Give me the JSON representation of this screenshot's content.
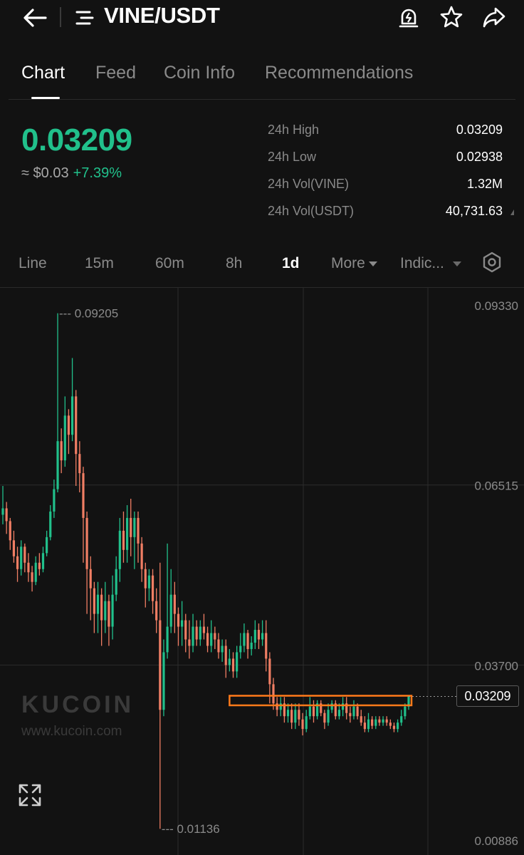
{
  "header": {
    "pair": "VINE/USDT",
    "icons": [
      "back-arrow-icon",
      "menu-lines-icon",
      "price-alert-icon",
      "star-icon",
      "share-icon"
    ]
  },
  "tabs": [
    {
      "label": "Chart",
      "active": true
    },
    {
      "label": "Feed",
      "active": false
    },
    {
      "label": "Coin Info",
      "active": false
    },
    {
      "label": "Recommendations",
      "active": false
    }
  ],
  "price": {
    "last": "0.03209",
    "approx_usd": "≈ $0.03",
    "change": "+7.39%",
    "color_up": "#21c08b",
    "color_down": "#f07e64"
  },
  "stats": [
    {
      "label": "24h High",
      "value": "0.03209"
    },
    {
      "label": "24h Low",
      "value": "0.02938"
    },
    {
      "label": "24h Vol(VINE)",
      "value": "1.32M"
    },
    {
      "label": "24h Vol(USDT)",
      "value": "40,731.63"
    }
  ],
  "intervals": [
    {
      "label": "Line",
      "active": false
    },
    {
      "label": "15m",
      "active": false
    },
    {
      "label": "60m",
      "active": false
    },
    {
      "label": "8h",
      "active": false
    },
    {
      "label": "1d",
      "active": true
    },
    {
      "label": "More",
      "active": false,
      "dropdown": true
    },
    {
      "label": "Indic...",
      "active": false,
      "dropdown": true
    }
  ],
  "settings_icon": "gear-hexagon-icon",
  "chart_data": {
    "type": "candlestick",
    "interval": "1d",
    "y_ticks": [
      "0.09330",
      "0.06515",
      "0.03700",
      "0.00886"
    ],
    "ylim": [
      0.00886,
      0.0933
    ],
    "annotations": {
      "high_label": "0.09205",
      "low_label": "0.01136"
    },
    "last_price_tag": "0.03209",
    "highlight_box": {
      "from": 0.0307,
      "to": 0.0322,
      "color": "#ff7a1a"
    },
    "watermark": {
      "brand": "KUCOIN",
      "url": "www.kucoin.com"
    },
    "candles": [
      [
        0.0605,
        0.0615,
        0.065,
        0.059
      ],
      [
        0.0615,
        0.0595,
        0.0625,
        0.0575
      ],
      [
        0.0595,
        0.0565,
        0.06,
        0.055
      ],
      [
        0.0565,
        0.054,
        0.058,
        0.053
      ],
      [
        0.054,
        0.052,
        0.0555,
        0.05
      ],
      [
        0.052,
        0.0555,
        0.0565,
        0.051
      ],
      [
        0.0555,
        0.053,
        0.056,
        0.0515
      ],
      [
        0.053,
        0.0515,
        0.0545,
        0.05
      ],
      [
        0.0515,
        0.05,
        0.0525,
        0.0485
      ],
      [
        0.05,
        0.053,
        0.054,
        0.0495
      ],
      [
        0.053,
        0.052,
        0.0545,
        0.051
      ],
      [
        0.052,
        0.0545,
        0.0555,
        0.0515
      ],
      [
        0.0545,
        0.057,
        0.058,
        0.054
      ],
      [
        0.057,
        0.061,
        0.062,
        0.0565
      ],
      [
        0.061,
        0.0645,
        0.066,
        0.06
      ],
      [
        0.0645,
        0.072,
        0.092,
        0.064
      ],
      [
        0.072,
        0.069,
        0.074,
        0.067
      ],
      [
        0.069,
        0.076,
        0.079,
        0.068
      ],
      [
        0.076,
        0.073,
        0.077,
        0.07
      ],
      [
        0.073,
        0.079,
        0.085,
        0.072
      ],
      [
        0.079,
        0.07,
        0.08,
        0.065
      ],
      [
        0.07,
        0.067,
        0.072,
        0.064
      ],
      [
        0.067,
        0.06,
        0.068,
        0.053
      ],
      [
        0.06,
        0.052,
        0.061,
        0.045
      ],
      [
        0.052,
        0.049,
        0.054,
        0.044
      ],
      [
        0.049,
        0.045,
        0.05,
        0.042
      ],
      [
        0.045,
        0.048,
        0.05,
        0.042
      ],
      [
        0.048,
        0.044,
        0.049,
        0.04
      ],
      [
        0.044,
        0.047,
        0.05,
        0.042
      ],
      [
        0.047,
        0.043,
        0.048,
        0.04
      ],
      [
        0.043,
        0.048,
        0.051,
        0.041
      ],
      [
        0.048,
        0.052,
        0.054,
        0.047
      ],
      [
        0.052,
        0.058,
        0.06,
        0.05
      ],
      [
        0.058,
        0.055,
        0.061,
        0.053
      ],
      [
        0.055,
        0.06,
        0.062,
        0.053
      ],
      [
        0.06,
        0.057,
        0.063,
        0.054
      ],
      [
        0.057,
        0.06,
        0.061,
        0.052
      ],
      [
        0.06,
        0.056,
        0.061,
        0.053
      ],
      [
        0.056,
        0.052,
        0.057,
        0.05
      ],
      [
        0.052,
        0.049,
        0.053,
        0.046
      ],
      [
        0.049,
        0.051,
        0.052,
        0.047
      ],
      [
        0.051,
        0.047,
        0.052,
        0.045
      ],
      [
        0.047,
        0.044,
        0.049,
        0.042
      ],
      [
        0.044,
        0.03,
        0.053,
        0.0114
      ],
      [
        0.03,
        0.039,
        0.041,
        0.029
      ],
      [
        0.039,
        0.043,
        0.056,
        0.038
      ],
      [
        0.043,
        0.048,
        0.052,
        0.042
      ],
      [
        0.048,
        0.045,
        0.05,
        0.042
      ],
      [
        0.045,
        0.043,
        0.046,
        0.04
      ],
      [
        0.043,
        0.044,
        0.047,
        0.04
      ],
      [
        0.044,
        0.041,
        0.045,
        0.039
      ],
      [
        0.041,
        0.04,
        0.044,
        0.038
      ],
      [
        0.04,
        0.043,
        0.045,
        0.039
      ],
      [
        0.043,
        0.041,
        0.044,
        0.04
      ],
      [
        0.041,
        0.043,
        0.044,
        0.04
      ],
      [
        0.043,
        0.042,
        0.045,
        0.041
      ],
      [
        0.042,
        0.04,
        0.043,
        0.039
      ],
      [
        0.04,
        0.042,
        0.044,
        0.039
      ],
      [
        0.042,
        0.041,
        0.043,
        0.0395
      ],
      [
        0.041,
        0.039,
        0.042,
        0.038
      ],
      [
        0.039,
        0.04,
        0.041,
        0.0375
      ],
      [
        0.04,
        0.037,
        0.041,
        0.035
      ],
      [
        0.037,
        0.038,
        0.0395,
        0.036
      ],
      [
        0.038,
        0.036,
        0.039,
        0.035
      ],
      [
        0.036,
        0.039,
        0.04,
        0.035
      ],
      [
        0.039,
        0.04,
        0.042,
        0.038
      ],
      [
        0.04,
        0.042,
        0.0435,
        0.039
      ],
      [
        0.042,
        0.0395,
        0.0425,
        0.038
      ],
      [
        0.0395,
        0.0405,
        0.0415,
        0.0385
      ],
      [
        0.0405,
        0.0425,
        0.044,
        0.0395
      ],
      [
        0.0425,
        0.041,
        0.0435,
        0.0395
      ],
      [
        0.041,
        0.042,
        0.044,
        0.04
      ],
      [
        0.042,
        0.038,
        0.044,
        0.036
      ],
      [
        0.038,
        0.034,
        0.039,
        0.031
      ],
      [
        0.034,
        0.031,
        0.035,
        0.03
      ],
      [
        0.031,
        0.03,
        0.032,
        0.029
      ],
      [
        0.03,
        0.031,
        0.032,
        0.029
      ],
      [
        0.031,
        0.029,
        0.032,
        0.028
      ],
      [
        0.029,
        0.03,
        0.031,
        0.028
      ],
      [
        0.03,
        0.028,
        0.031,
        0.027
      ],
      [
        0.028,
        0.03,
        0.031,
        0.027
      ],
      [
        0.03,
        0.0285,
        0.031,
        0.0275
      ],
      [
        0.0285,
        0.027,
        0.0295,
        0.026
      ],
      [
        0.027,
        0.029,
        0.03,
        0.0265
      ],
      [
        0.029,
        0.0305,
        0.032,
        0.0285
      ],
      [
        0.0305,
        0.029,
        0.0315,
        0.028
      ],
      [
        0.029,
        0.031,
        0.0315,
        0.0285
      ],
      [
        0.031,
        0.0295,
        0.0315,
        0.029
      ],
      [
        0.0295,
        0.028,
        0.03,
        0.027
      ],
      [
        0.028,
        0.03,
        0.031,
        0.0275
      ],
      [
        0.03,
        0.031,
        0.0315,
        0.0295
      ],
      [
        0.031,
        0.029,
        0.0315,
        0.0285
      ],
      [
        0.029,
        0.03,
        0.031,
        0.0285
      ],
      [
        0.03,
        0.031,
        0.032,
        0.029
      ],
      [
        0.031,
        0.0295,
        0.032,
        0.0285
      ],
      [
        0.0295,
        0.029,
        0.0305,
        0.028
      ],
      [
        0.029,
        0.0305,
        0.0315,
        0.0285
      ],
      [
        0.0305,
        0.029,
        0.031,
        0.0285
      ],
      [
        0.029,
        0.028,
        0.03,
        0.0275
      ],
      [
        0.028,
        0.027,
        0.029,
        0.0265
      ],
      [
        0.027,
        0.0285,
        0.0295,
        0.0265
      ],
      [
        0.0285,
        0.0275,
        0.029,
        0.027
      ],
      [
        0.0275,
        0.0285,
        0.029,
        0.027
      ],
      [
        0.0285,
        0.028,
        0.029,
        0.0275
      ],
      [
        0.028,
        0.0285,
        0.029,
        0.0275
      ],
      [
        0.0285,
        0.028,
        0.029,
        0.0275
      ],
      [
        0.028,
        0.0275,
        0.0285,
        0.027
      ],
      [
        0.0275,
        0.027,
        0.028,
        0.0265
      ],
      [
        0.027,
        0.028,
        0.0285,
        0.0265
      ],
      [
        0.028,
        0.029,
        0.03,
        0.0275
      ],
      [
        0.029,
        0.0305,
        0.031,
        0.0285
      ],
      [
        0.0305,
        0.0321,
        0.0322,
        0.03
      ]
    ]
  }
}
